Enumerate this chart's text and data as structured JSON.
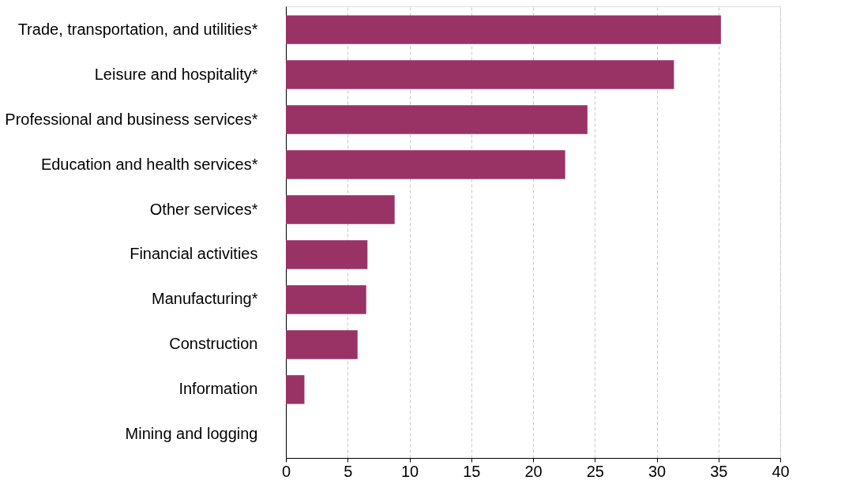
{
  "chart_data": {
    "type": "bar",
    "orientation": "horizontal",
    "categories": [
      "Trade, transportation, and utilities*",
      "Leisure and hospitality*",
      "Professional and business services*",
      "Education and health services*",
      "Other services*",
      "Financial activities",
      "Manufacturing*",
      "Construction",
      "Information",
      "Mining and logging"
    ],
    "values": [
      35.2,
      31.4,
      24.4,
      22.6,
      8.8,
      6.6,
      6.5,
      5.8,
      1.5,
      0
    ],
    "color": "#993366",
    "xlim": [
      0,
      40
    ],
    "xticks": [
      0,
      5,
      10,
      15,
      20,
      25,
      30,
      35,
      40
    ],
    "grid": "x"
  }
}
